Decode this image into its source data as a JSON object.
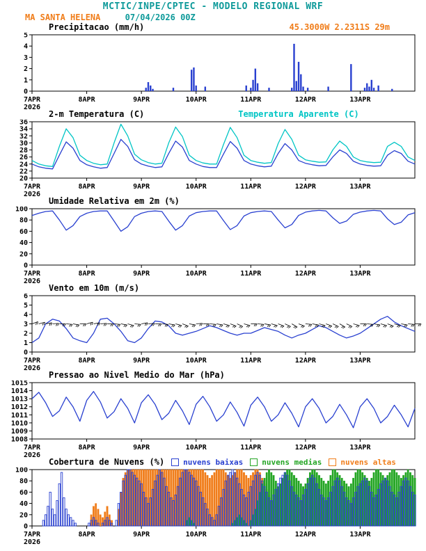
{
  "header": {
    "title": "MCTIC/INPE/CPTEC - MODELO REGIONAL WRF",
    "station": "MA SANTA HELENA",
    "run": "07/04/2026 00Z",
    "location": "45.3000W 2.2311S 29m"
  },
  "colors": {
    "teal": "#0e9a9a",
    "cyan": "#00c5c5",
    "orange": "#f07d1a",
    "blue": "#2940d0",
    "green": "#23a523",
    "black": "#000000"
  },
  "x_axis": {
    "tick_labels": [
      "7APR",
      "8APR",
      "9APR",
      "10APR",
      "11APR",
      "12APR",
      "13APR"
    ],
    "year": "2026",
    "hours_total": 168,
    "tick_interval_hours": 24
  },
  "chart_data": [
    {
      "id": "precip",
      "type": "bar",
      "title": "Precipitacao (mm/h)",
      "ylabel": "mm/h",
      "ylim": [
        0,
        5
      ],
      "ystep": 1,
      "color_key": "blue",
      "values_hourly": [
        0,
        0,
        0,
        0,
        0,
        0,
        0,
        0,
        0,
        0,
        0,
        0,
        0,
        0,
        0,
        0,
        0,
        0,
        0,
        0,
        0,
        0,
        0,
        0,
        0,
        0,
        0,
        0,
        0,
        0,
        0,
        0,
        0,
        0,
        0,
        0,
        0,
        0,
        0,
        0,
        0,
        0,
        0,
        0,
        0,
        0,
        0,
        0,
        0,
        0,
        0.3,
        0.8,
        0.5,
        0.2,
        0,
        0,
        0,
        0,
        0,
        0,
        0,
        0,
        0.3,
        0,
        0,
        0,
        0,
        0,
        0,
        0,
        1.9,
        2.1,
        0.5,
        0,
        0,
        0,
        0.4,
        0,
        0,
        0,
        0,
        0,
        0,
        0,
        0,
        0,
        0,
        0,
        0,
        0,
        0,
        0,
        0,
        0,
        0.5,
        0,
        0.3,
        1.0,
        2.0,
        0.7,
        0,
        0,
        0,
        0,
        0.3,
        0,
        0,
        0,
        0,
        0,
        0,
        0,
        0,
        0,
        0.3,
        4.2,
        0.9,
        2.6,
        1.5,
        0.4,
        0,
        0.3,
        0,
        0,
        0,
        0,
        0,
        0,
        0,
        0,
        0.4,
        0,
        0,
        0,
        0,
        0,
        0,
        0,
        0,
        0,
        2.4,
        0,
        0,
        0,
        0,
        0,
        0.3,
        0.7,
        0.4,
        1.0,
        0.3,
        0,
        0.5,
        0,
        0,
        0,
        0,
        0,
        0.2,
        0,
        0,
        0,
        0,
        0,
        0,
        0,
        0,
        0,
        0
      ]
    },
    {
      "id": "temp",
      "type": "line",
      "title": "2-m Temperatura (C)",
      "title2": "Temperatura Aparente (C)",
      "ylim": [
        20,
        36
      ],
      "ystep": 2,
      "x_step_hours": 3,
      "series": [
        {
          "name": "2-m Temperatura (C)",
          "color_key": "blue",
          "values": [
            24.0,
            23.2,
            22.8,
            22.6,
            26.5,
            30.3,
            28.5,
            25.0,
            23.8,
            23.2,
            22.8,
            23.0,
            27.0,
            31.0,
            29.0,
            25.2,
            24.0,
            23.4,
            23.0,
            23.2,
            27.0,
            30.5,
            28.8,
            25.0,
            24.0,
            23.3,
            23.0,
            23.0,
            26.8,
            30.4,
            28.5,
            25.0,
            24.0,
            23.5,
            23.2,
            23.4,
            27.0,
            29.8,
            28.0,
            25.0,
            24.2,
            23.8,
            23.5,
            23.6,
            26.0,
            28.0,
            27.0,
            24.8,
            24.0,
            23.6,
            23.4,
            23.5,
            26.5,
            27.8,
            27.0,
            24.8,
            24.0
          ]
        },
        {
          "name": "Temperatura Aparente (C)",
          "color_key": "cyan",
          "values": [
            25.0,
            24.0,
            23.5,
            23.3,
            29.0,
            34.0,
            31.5,
            26.5,
            25.0,
            24.2,
            23.8,
            24.0,
            30.0,
            35.3,
            32.0,
            26.8,
            25.2,
            24.4,
            24.0,
            24.2,
            30.0,
            34.5,
            31.8,
            26.5,
            25.0,
            24.3,
            24.0,
            24.0,
            29.5,
            34.4,
            31.5,
            26.5,
            25.0,
            24.5,
            24.2,
            24.4,
            29.8,
            33.8,
            31.0,
            26.5,
            25.2,
            24.8,
            24.5,
            24.6,
            28.0,
            30.5,
            29.0,
            26.0,
            25.0,
            24.6,
            24.4,
            24.5,
            29.0,
            30.2,
            29.0,
            26.0,
            25.0
          ]
        }
      ]
    },
    {
      "id": "rh",
      "type": "line",
      "title": "Umidade Relativa em 2m (%)",
      "ylim": [
        0,
        100
      ],
      "ystep": 20,
      "x_step_hours": 3,
      "series": [
        {
          "name": "Umidade Relativa em 2m (%)",
          "color_key": "blue",
          "values": [
            88,
            92,
            95,
            96,
            80,
            62,
            70,
            86,
            92,
            95,
            96,
            96,
            78,
            60,
            68,
            86,
            92,
            95,
            96,
            95,
            78,
            62,
            70,
            87,
            93,
            95,
            96,
            96,
            79,
            63,
            70,
            87,
            93,
            95,
            96,
            95,
            80,
            66,
            72,
            88,
            94,
            96,
            97,
            96,
            84,
            74,
            78,
            90,
            94,
            96,
            97,
            96,
            82,
            72,
            76,
            89,
            93
          ]
        }
      ]
    },
    {
      "id": "wind",
      "type": "wind",
      "title": "Vento em 10m (m/s)",
      "ylim": [
        0,
        6
      ],
      "ystep": 1,
      "x_step_hours": 3,
      "barb_y": 3,
      "speed": [
        1.0,
        1.5,
        3.0,
        3.5,
        3.3,
        2.5,
        1.5,
        1.2,
        1.0,
        2.0,
        3.5,
        3.6,
        3.0,
        2.2,
        1.2,
        1.0,
        1.5,
        2.5,
        3.3,
        3.2,
        2.8,
        2.0,
        1.8,
        2.0,
        2.2,
        2.5,
        2.8,
        2.6,
        2.3,
        2.0,
        1.8,
        2.0,
        2.0,
        2.3,
        2.6,
        2.4,
        2.2,
        1.8,
        1.5,
        1.8,
        2.0,
        2.4,
        2.8,
        2.6,
        2.2,
        1.8,
        1.5,
        1.7,
        2.0,
        2.5,
        3.0,
        3.5,
        3.8,
        3.2,
        2.8,
        2.5,
        2.2
      ],
      "dir_deg": [
        70,
        75,
        80,
        85,
        90,
        95,
        100,
        90,
        75,
        80,
        85,
        90,
        95,
        100,
        105,
        95,
        80,
        85,
        90,
        95,
        100,
        105,
        110,
        100,
        85,
        90,
        95,
        100,
        105,
        110,
        115,
        105,
        90,
        95,
        100,
        105,
        110,
        115,
        120,
        110,
        95,
        100,
        105,
        110,
        115,
        120,
        115,
        105,
        90,
        95,
        100,
        105,
        110,
        105,
        100,
        95,
        90
      ]
    },
    {
      "id": "pres",
      "type": "line",
      "title": "Pressao ao Nivel Medio do Mar (hPa)",
      "ylim": [
        1008,
        1015
      ],
      "ystep": 1,
      "x_step_hours": 3,
      "series": [
        {
          "name": "Pressao ao Nivel Medio do Mar (hPa)",
          "color_key": "blue",
          "values": [
            1013.0,
            1013.8,
            1012.5,
            1010.8,
            1011.5,
            1013.2,
            1012.0,
            1010.2,
            1012.8,
            1013.9,
            1012.6,
            1010.6,
            1011.4,
            1013.0,
            1011.8,
            1010.0,
            1012.5,
            1013.5,
            1012.3,
            1010.4,
            1011.2,
            1012.8,
            1011.5,
            1009.8,
            1012.3,
            1013.3,
            1012.0,
            1010.2,
            1011.0,
            1012.6,
            1011.3,
            1009.6,
            1012.2,
            1013.2,
            1012.0,
            1010.2,
            1011.0,
            1012.5,
            1011.2,
            1009.5,
            1012.0,
            1013.0,
            1011.8,
            1010.0,
            1010.8,
            1012.3,
            1011.0,
            1009.4,
            1012.0,
            1013.0,
            1011.8,
            1010.0,
            1010.8,
            1012.2,
            1011.0,
            1009.5,
            1011.8
          ]
        }
      ]
    },
    {
      "id": "clouds",
      "type": "multibar",
      "title": "Cobertura de Nuvens (%)",
      "ylim": [
        0,
        100
      ],
      "ystep": 20,
      "legend": [
        {
          "label": "nuvens baixas",
          "color_key": "blue"
        },
        {
          "label": "nuvens medias",
          "color_key": "green"
        },
        {
          "label": "nuvens altas",
          "color_key": "orange"
        }
      ],
      "series": [
        {
          "name": "nuvens altas",
          "color_key": "orange",
          "style": "solid",
          "values": [
            0,
            0,
            0,
            0,
            0,
            0,
            0,
            0,
            0,
            0,
            0,
            0,
            0,
            0,
            0,
            0,
            0,
            0,
            0,
            0,
            0,
            0,
            0,
            0,
            0,
            0,
            20,
            35,
            40,
            30,
            20,
            15,
            25,
            35,
            20,
            10,
            0,
            0,
            30,
            60,
            85,
            95,
            100,
            100,
            100,
            100,
            100,
            100,
            100,
            100,
            100,
            100,
            100,
            100,
            100,
            100,
            100,
            100,
            100,
            100,
            100,
            100,
            100,
            100,
            100,
            100,
            100,
            100,
            100,
            100,
            100,
            100,
            100,
            100,
            100,
            100,
            95,
            90,
            85,
            90,
            95,
            100,
            100,
            100,
            100,
            95,
            90,
            85,
            90,
            95,
            100,
            100,
            100,
            95,
            90,
            85,
            90,
            95,
            100,
            100,
            95,
            85,
            75,
            65,
            55,
            45,
            40,
            35,
            30,
            35,
            40,
            45,
            40,
            35,
            30,
            25,
            20,
            25,
            30,
            35,
            40,
            45,
            50,
            45,
            40,
            35,
            30,
            25,
            20,
            15,
            20,
            25,
            30,
            35,
            30,
            25,
            20,
            15,
            10,
            15,
            20,
            25,
            30,
            35,
            30,
            25,
            20,
            15,
            10,
            15,
            20,
            25,
            20,
            15,
            10,
            5,
            10,
            15,
            20,
            15,
            10,
            5,
            10,
            15,
            20,
            15,
            10,
            5,
            0
          ]
        },
        {
          "name": "nuvens medias",
          "color_key": "green",
          "style": "solid",
          "values": [
            0,
            0,
            0,
            0,
            0,
            0,
            0,
            0,
            0,
            0,
            0,
            0,
            0,
            0,
            0,
            0,
            0,
            0,
            0,
            0,
            0,
            0,
            0,
            0,
            0,
            0,
            0,
            0,
            0,
            0,
            0,
            0,
            0,
            0,
            0,
            0,
            0,
            0,
            0,
            0,
            0,
            0,
            0,
            0,
            0,
            0,
            0,
            0,
            0,
            0,
            0,
            0,
            0,
            0,
            0,
            0,
            0,
            0,
            0,
            0,
            0,
            0,
            0,
            0,
            0,
            0,
            0,
            0,
            10,
            15,
            10,
            5,
            0,
            0,
            0,
            0,
            0,
            0,
            0,
            0,
            0,
            0,
            0,
            0,
            0,
            0,
            0,
            0,
            5,
            10,
            15,
            20,
            15,
            10,
            5,
            0,
            10,
            20,
            30,
            45,
            60,
            75,
            85,
            95,
            100,
            95,
            90,
            80,
            70,
            75,
            85,
            95,
            100,
            100,
            95,
            90,
            85,
            80,
            75,
            70,
            75,
            85,
            95,
            100,
            100,
            95,
            90,
            85,
            80,
            75,
            80,
            90,
            100,
            100,
            95,
            90,
            85,
            80,
            75,
            70,
            75,
            85,
            95,
            100,
            100,
            95,
            90,
            85,
            80,
            85,
            95,
            100,
            100,
            95,
            90,
            85,
            90,
            95,
            100,
            100,
            95,
            90,
            85,
            90,
            95,
            100,
            95,
            90,
            85
          ]
        },
        {
          "name": "nuvens baixas",
          "color_key": "blue",
          "style": "hollow",
          "values": [
            0,
            0,
            0,
            0,
            0,
            10,
            20,
            35,
            60,
            30,
            20,
            45,
            75,
            95,
            50,
            30,
            20,
            15,
            10,
            5,
            0,
            0,
            0,
            0,
            0,
            5,
            10,
            15,
            10,
            5,
            0,
            5,
            10,
            15,
            10,
            5,
            0,
            10,
            40,
            60,
            80,
            90,
            100,
            100,
            95,
            90,
            85,
            80,
            75,
            60,
            50,
            40,
            50,
            65,
            80,
            90,
            100,
            95,
            85,
            70,
            60,
            50,
            45,
            55,
            70,
            85,
            95,
            100,
            100,
            95,
            90,
            85,
            80,
            70,
            60,
            50,
            40,
            30,
            20,
            15,
            10,
            20,
            35,
            50,
            65,
            80,
            90,
            95,
            100,
            95,
            85,
            75,
            65,
            55,
            50,
            60,
            70,
            80,
            90,
            95,
            90,
            80,
            70,
            60,
            50,
            45,
            55,
            65,
            75,
            85,
            90,
            95,
            90,
            80,
            70,
            60,
            55,
            50,
            45,
            55,
            65,
            75,
            85,
            90,
            85,
            75,
            65,
            55,
            50,
            45,
            50,
            60,
            70,
            80,
            85,
            80,
            70,
            60,
            50,
            45,
            40,
            50,
            60,
            70,
            75,
            80,
            85,
            80,
            70,
            60,
            50,
            55,
            65,
            75,
            80,
            85,
            80,
            70,
            60,
            55,
            50,
            60,
            70,
            80,
            85,
            80,
            70,
            60,
            55
          ]
        }
      ]
    }
  ]
}
